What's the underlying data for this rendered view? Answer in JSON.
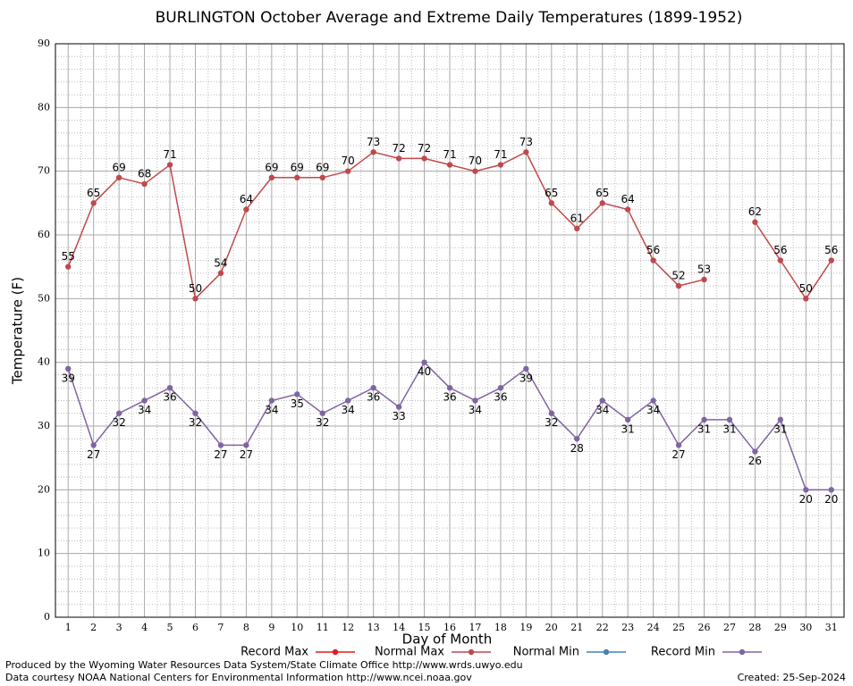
{
  "chart_data": {
    "type": "line",
    "title": "BURLINGTON October Average and Extreme Daily Temperatures (1899-1952)",
    "xlabel": "Day of Month",
    "ylabel": "Temperature (F)",
    "x": [
      1,
      2,
      3,
      4,
      5,
      6,
      7,
      8,
      9,
      10,
      11,
      12,
      13,
      14,
      15,
      16,
      17,
      18,
      19,
      20,
      21,
      22,
      23,
      24,
      25,
      26,
      27,
      28,
      29,
      30,
      31
    ],
    "xlim": [
      0.5,
      31.5
    ],
    "xticks": [
      1,
      2,
      3,
      4,
      5,
      6,
      7,
      8,
      9,
      10,
      11,
      12,
      13,
      14,
      15,
      16,
      17,
      18,
      19,
      20,
      21,
      22,
      23,
      24,
      25,
      26,
      27,
      28,
      29,
      30,
      31
    ],
    "ylim": [
      0,
      90
    ],
    "yticks": [
      0,
      10,
      20,
      30,
      40,
      50,
      60,
      70,
      80,
      90
    ],
    "grid": true,
    "series": [
      {
        "name": "Record Max",
        "color": "#e41a1c",
        "label_side": "above",
        "values": [
          null,
          null,
          null,
          null,
          null,
          null,
          null,
          null,
          null,
          null,
          null,
          null,
          null,
          null,
          null,
          null,
          null,
          null,
          null,
          null,
          null,
          null,
          null,
          null,
          null,
          null,
          null,
          null,
          null,
          null,
          null
        ]
      },
      {
        "name": "Normal Max",
        "color": "#c0494d",
        "label_side": "above",
        "values": [
          55,
          65,
          69,
          68,
          71,
          50,
          54,
          64,
          69,
          69,
          69,
          70,
          73,
          72,
          72,
          71,
          70,
          71,
          73,
          65,
          61,
          65,
          64,
          56,
          52,
          53,
          null,
          62,
          56,
          50,
          56
        ]
      },
      {
        "name": "Normal Min",
        "color": "#4682b4",
        "label_side": "below",
        "values": [
          null,
          null,
          null,
          null,
          null,
          null,
          null,
          null,
          null,
          null,
          null,
          null,
          null,
          null,
          null,
          null,
          null,
          null,
          null,
          null,
          null,
          null,
          null,
          null,
          null,
          null,
          null,
          null,
          null,
          null,
          null
        ]
      },
      {
        "name": "Record Min",
        "color": "#8064a2",
        "label_side": "below",
        "values": [
          39,
          27,
          32,
          34,
          36,
          32,
          27,
          27,
          34,
          35,
          32,
          34,
          36,
          33,
          40,
          36,
          34,
          36,
          39,
          32,
          28,
          34,
          31,
          34,
          27,
          31,
          31,
          26,
          31,
          20,
          20
        ]
      }
    ],
    "footer_left": [
      "Produced by the Wyoming Water Resources Data System/State Climate Office http://www.wrds.uwyo.edu",
      "Data courtesy NOAA National Centers for Environmental Information http://www.ncei.noaa.gov"
    ],
    "footer_right": "Created:  25-Sep-2024"
  }
}
